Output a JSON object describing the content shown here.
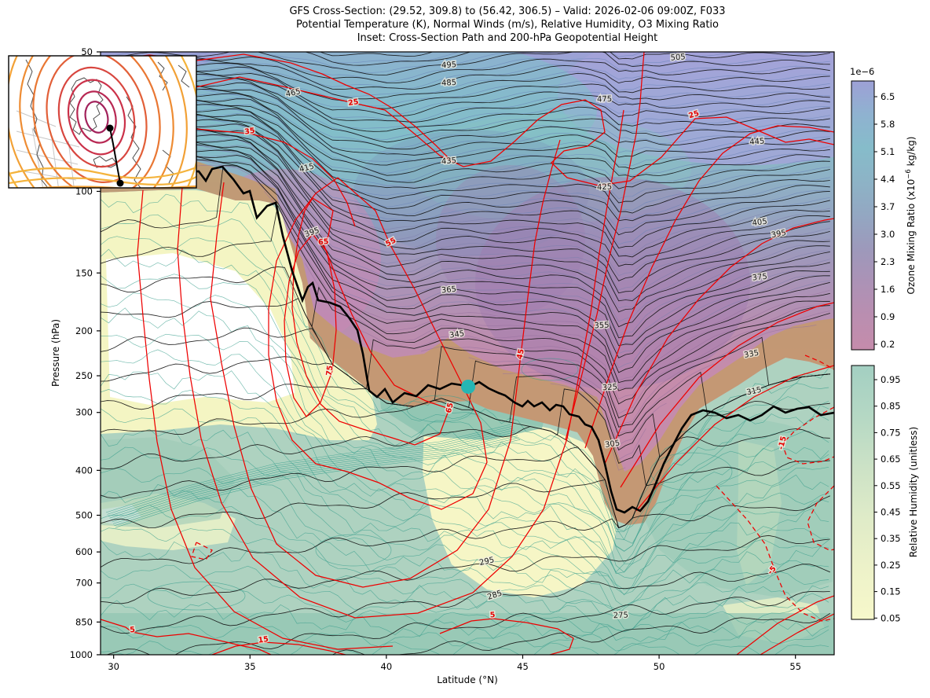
{
  "title": {
    "line1": "GFS Cross-Section: (29.52, 309.8) to (56.42, 306.5) – Valid: 2026-02-06 09:00Z, F033",
    "line2": "Potential Temperature (K), Normal Winds (m/s), Relative Humidity, O3 Mixing Ratio",
    "line3": "Inset: Cross-Section Path and 200-hPa Geopotential Height"
  },
  "axes": {
    "x": {
      "label": "Latitude (°N)",
      "min": 29.52,
      "max": 56.42,
      "ticks": [
        30,
        35,
        40,
        45,
        50,
        55
      ]
    },
    "y": {
      "label": "Pressure (hPa)",
      "min": 50,
      "max": 1000,
      "scale": "log",
      "ticks": [
        50,
        100,
        150,
        200,
        250,
        300,
        400,
        500,
        600,
        700,
        850,
        1000
      ]
    }
  },
  "colorbars": {
    "ozone": {
      "offset_text": "1e−6",
      "label_prefix": "Ozone Mixing Ratio (x10",
      "label_sup": "−6",
      "label_suffix": " kg/kg)",
      "ticks": [
        "6.5",
        "5.8",
        "5.1",
        "4.4",
        "3.7",
        "3.0",
        "2.3",
        "1.6",
        "0.9",
        "0.2"
      ],
      "gradient_top_to_bottom": [
        "#9da0d6",
        "#8fb2d0",
        "#86bcca",
        "#8db3c6",
        "#93a7c2",
        "#9d99bb",
        "#ac92b6",
        "#ba8eb0",
        "#c58cab"
      ]
    },
    "rh": {
      "label": "Relative Humidity (unitless)",
      "ticks": [
        "0.95",
        "0.85",
        "0.75",
        "0.65",
        "0.55",
        "0.45",
        "0.35",
        "0.25",
        "0.15",
        "0.05"
      ],
      "gradient_top_to_bottom": [
        "#a3cfc2",
        "#b5d8c4",
        "#cce2c6",
        "#dfebc8",
        "#edf2c9",
        "#f7f8cb"
      ]
    }
  },
  "chart_data": {
    "type": "contour_cross_section",
    "title": "GFS Cross-Section: (29.52, 309.8) to (56.42, 306.5) – Valid: 2026-02-06 09:00Z, F033",
    "x": {
      "label": "Latitude (°N)",
      "min": 29.52,
      "max": 56.42,
      "ticks": [
        30,
        35,
        40,
        45,
        50,
        55
      ]
    },
    "y": {
      "label": "Pressure (hPa)",
      "min": 50,
      "max": 1000,
      "scale": "log",
      "ticks": [
        50,
        100,
        150,
        200,
        250,
        300,
        400,
        500,
        600,
        700,
        850,
        1000
      ]
    },
    "potential_temperature": {
      "units": "K",
      "line_color": "#000000",
      "contour_interval": 5,
      "label_interval": 10,
      "labels": [
        {
          "v": "505",
          "lat": 50.7,
          "p": 52,
          "rot": -4
        },
        {
          "v": "495",
          "lat": 42.3,
          "p": 54,
          "rot": -3
        },
        {
          "v": "485",
          "lat": 42.3,
          "p": 59,
          "rot": -3
        },
        {
          "v": "475",
          "lat": 48.0,
          "p": 64,
          "rot": -2
        },
        {
          "v": "465",
          "lat": 36.6,
          "p": 62,
          "rot": -12
        },
        {
          "v": "445",
          "lat": 53.6,
          "p": 79,
          "rot": -5
        },
        {
          "v": "435",
          "lat": 42.3,
          "p": 87,
          "rot": -4
        },
        {
          "v": "425",
          "lat": 48.0,
          "p": 99,
          "rot": -2
        },
        {
          "v": "415",
          "lat": 37.1,
          "p": 90,
          "rot": -14
        },
        {
          "v": "405",
          "lat": 53.7,
          "p": 118,
          "rot": -8
        },
        {
          "v": "395",
          "lat": 37.3,
          "p": 124,
          "rot": -18
        },
        {
          "v": "395",
          "lat": 54.4,
          "p": 125,
          "rot": -10
        },
        {
          "v": "375",
          "lat": 53.7,
          "p": 155,
          "rot": -6
        },
        {
          "v": "365",
          "lat": 42.3,
          "p": 165,
          "rot": -6
        },
        {
          "v": "355",
          "lat": 47.9,
          "p": 197,
          "rot": -3
        },
        {
          "v": "345",
          "lat": 42.6,
          "p": 206,
          "rot": -8
        },
        {
          "v": "335",
          "lat": 53.4,
          "p": 227,
          "rot": -10
        },
        {
          "v": "325",
          "lat": 48.2,
          "p": 268,
          "rot": -3
        },
        {
          "v": "315",
          "lat": 53.5,
          "p": 273,
          "rot": -12
        },
        {
          "v": "305",
          "lat": 48.3,
          "p": 355,
          "rot": -8
        },
        {
          "v": "295",
          "lat": 43.7,
          "p": 636,
          "rot": -12
        },
        {
          "v": "285",
          "lat": 44.0,
          "p": 752,
          "rot": -18
        },
        {
          "v": "275",
          "lat": 48.6,
          "p": 832,
          "rot": -2
        }
      ]
    },
    "normal_winds": {
      "units": "m/s",
      "line_color": "#ee0000",
      "contour_interval": 10,
      "negative_dashed": true,
      "labels": [
        {
          "v": "25",
          "lat": 38.8,
          "p": 65,
          "rot": -8,
          "dashed": false
        },
        {
          "v": "35",
          "lat": 35.0,
          "p": 75,
          "rot": -8,
          "dashed": false
        },
        {
          "v": "25",
          "lat": 51.3,
          "p": 69,
          "rot": -18,
          "dashed": false
        },
        {
          "v": "65",
          "lat": 37.7,
          "p": 130,
          "rot": -4,
          "dashed": false
        },
        {
          "v": "55",
          "lat": 40.2,
          "p": 130,
          "rot": -28,
          "dashed": false
        },
        {
          "v": "75",
          "lat": 38.0,
          "p": 244,
          "rot": -82,
          "dashed": false
        },
        {
          "v": "65",
          "lat": 42.4,
          "p": 294,
          "rot": -76,
          "dashed": false
        },
        {
          "v": "45",
          "lat": 45.0,
          "p": 225,
          "rot": -78,
          "dashed": false
        },
        {
          "v": "-15",
          "lat": 54.6,
          "p": 350,
          "rot": -76,
          "dashed": true
        },
        {
          "v": "-5",
          "lat": 54.2,
          "p": 662,
          "rot": -48,
          "dashed": true
        },
        {
          "v": "5",
          "lat": 43.9,
          "p": 830,
          "rot": -4,
          "dashed": false
        },
        {
          "v": "15",
          "lat": 35.5,
          "p": 938,
          "rot": -8,
          "dashed": false
        },
        {
          "v": "5",
          "lat": 30.7,
          "p": 893,
          "rot": -6,
          "dashed": false
        }
      ]
    },
    "relative_humidity": {
      "units": "unitless",
      "fill_min": 0.05,
      "fill_max": 1.0,
      "line_color": "#3aa08e"
    },
    "ozone_mixing_ratio": {
      "units": "kg/kg",
      "offset": "1e−6",
      "fill_min_x1e6": 0.2,
      "fill_max_x1e6": 6.5
    },
    "tropopause_line": {
      "color": "#000000",
      "width": 2.6
    },
    "path_marker": {
      "lat": 43.0,
      "pressure_hPa": 264,
      "color": "#26b6b4"
    }
  },
  "inset": {
    "caption": "Cross-Section Path and 200-hPa Geopotential Height",
    "endpoints": [
      {
        "lat": 29.52,
        "lon": 309.8
      },
      {
        "lat": 56.42,
        "lon": 306.5
      }
    ],
    "contour_palette_outer_to_inner": [
      "#f4b33c",
      "#f2a136",
      "#ee8c33",
      "#e97733",
      "#e25f38",
      "#d8463f",
      "#cb3149",
      "#b82853",
      "#a2225b"
    ],
    "land_color": "#ffffff",
    "coast_color": "#4d4d4d",
    "state_color": "#c6c6c6",
    "path_color": "#000000"
  }
}
